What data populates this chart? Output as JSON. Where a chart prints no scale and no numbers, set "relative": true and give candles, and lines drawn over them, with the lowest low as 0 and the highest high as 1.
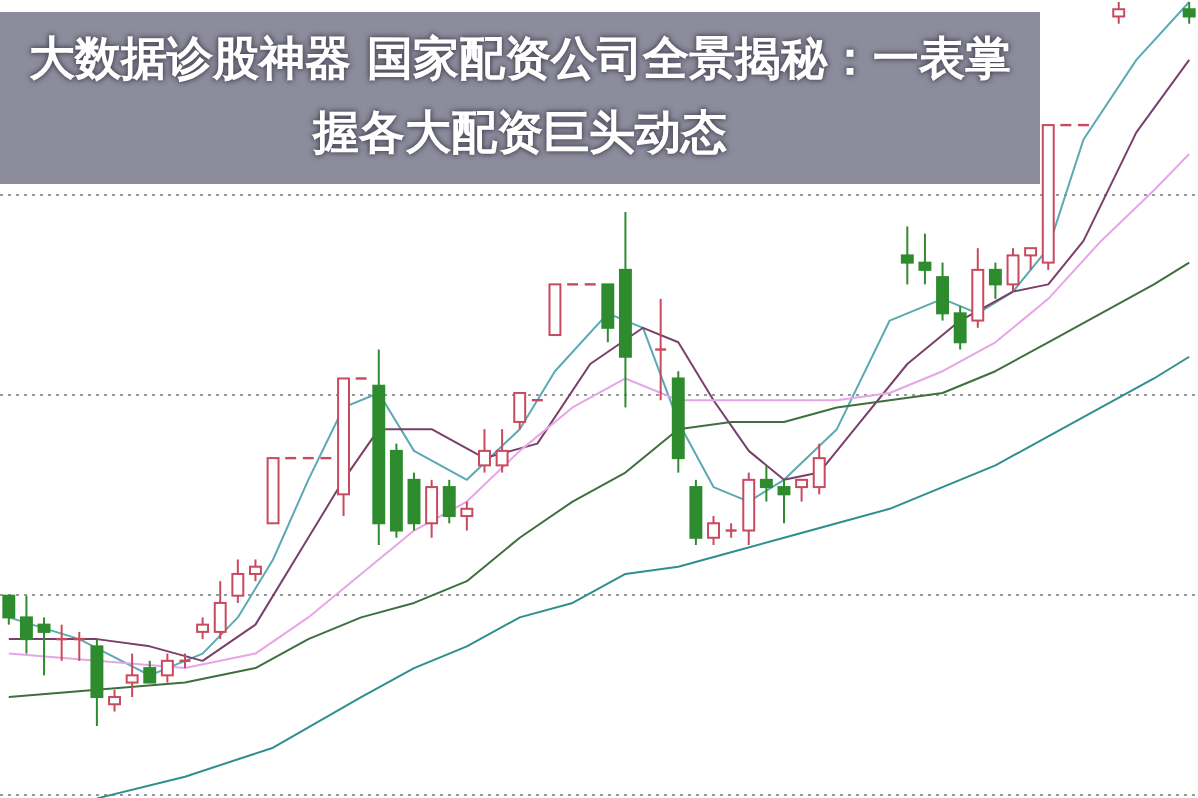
{
  "chart_data": {
    "type": "candlestick",
    "title": "大数据诊股神器 国家配资公司全景揭秘：一表掌握各大配资巨头动态",
    "relative": true,
    "grid": "y",
    "categories": [
      null,
      null,
      null,
      null,
      null,
      null,
      null,
      null,
      null,
      null,
      null,
      null,
      null,
      null,
      null,
      null,
      null,
      null,
      null,
      null,
      null,
      null,
      null,
      null,
      null,
      null,
      null,
      null,
      null,
      null,
      null,
      null,
      null,
      null,
      null,
      null,
      null,
      null,
      null,
      null,
      null,
      null,
      null,
      null,
      null,
      null,
      null,
      null,
      null,
      null,
      null,
      null,
      null,
      null,
      null,
      null,
      null,
      null,
      null,
      null,
      null,
      null,
      null,
      null,
      null,
      null,
      null,
      null
    ],
    "ohlc": [
      [
        0.18,
        0.18,
        0.14,
        0.15
      ],
      [
        0.15,
        0.18,
        0.1,
        0.12
      ],
      [
        0.14,
        0.15,
        0.07,
        0.13
      ],
      [
        0.12,
        0.14,
        0.09,
        0.12
      ],
      [
        0.12,
        0.13,
        0.09,
        0.12
      ],
      [
        0.11,
        0.12,
        0,
        0.04
      ],
      [
        0.03,
        0.05,
        0.02,
        0.04
      ],
      [
        0.06,
        0.1,
        0.04,
        0.07
      ],
      [
        0.08,
        0.09,
        0.06,
        0.06
      ],
      [
        0.07,
        0.1,
        0.06,
        0.09
      ],
      [
        0.09,
        0.1,
        0.08,
        0.09
      ],
      [
        0.13,
        0.15,
        0.12,
        0.14
      ],
      [
        0.13,
        0.2,
        0.12,
        0.17
      ],
      [
        0.18,
        0.23,
        0.17,
        0.21
      ],
      [
        0.21,
        0.23,
        0.2,
        0.22
      ],
      [
        0.28,
        0.37,
        0.28,
        0.37
      ],
      [
        0.37,
        0.37,
        0.37,
        0.37
      ],
      [
        0.37,
        0.37,
        0.37,
        0.37
      ],
      [
        0.37,
        0.37,
        0.37,
        0.37
      ],
      [
        0.32,
        0.48,
        0.29,
        0.48
      ],
      [
        0.48,
        0.48,
        0.48,
        0.48
      ],
      [
        0.47,
        0.52,
        0.25,
        0.28
      ],
      [
        0.38,
        0.39,
        0.26,
        0.27
      ],
      [
        0.34,
        0.35,
        0.27,
        0.28
      ],
      [
        0.28,
        0.34,
        0.26,
        0.33
      ],
      [
        0.33,
        0.34,
        0.28,
        0.29
      ],
      [
        0.29,
        0.31,
        0.27,
        0.3
      ],
      [
        0.36,
        0.41,
        0.35,
        0.38
      ],
      [
        0.36,
        0.41,
        0.35,
        0.38
      ],
      [
        0.42,
        0.46,
        0.41,
        0.46
      ],
      [
        0.45,
        0.45,
        0.45,
        0.45
      ],
      [
        0.54,
        0.61,
        0.54,
        0.61
      ],
      [
        0.61,
        0.61,
        0.61,
        0.61
      ],
      [
        0.61,
        0.61,
        0.61,
        0.61
      ],
      [
        0.61,
        0.61,
        0.53,
        0.55
      ],
      [
        0.63,
        0.71,
        0.44,
        0.51
      ],
      null,
      [
        0.52,
        0.59,
        0.45,
        0.52
      ],
      [
        0.48,
        0.49,
        0.35,
        0.37
      ],
      [
        0.33,
        0.34,
        0.25,
        0.26
      ],
      [
        0.26,
        0.29,
        0.25,
        0.28
      ],
      [
        0.27,
        0.28,
        0.26,
        0.27
      ],
      [
        0.27,
        0.35,
        0.25,
        0.34
      ],
      [
        0.34,
        0.36,
        0.31,
        0.33
      ],
      [
        0.33,
        0.34,
        0.28,
        0.32
      ],
      [
        0.33,
        0.34,
        0.31,
        0.34
      ],
      [
        0.33,
        0.39,
        0.32,
        0.37
      ],
      null,
      null,
      null,
      null,
      [
        0.65,
        0.69,
        0.61,
        0.64
      ],
      [
        0.64,
        0.68,
        0.61,
        0.63
      ],
      [
        0.62,
        0.64,
        0.56,
        0.57
      ],
      [
        0.57,
        0.58,
        0.52,
        0.53
      ],
      [
        0.56,
        0.66,
        0.55,
        0.63
      ],
      [
        0.63,
        0.64,
        0.59,
        0.61
      ],
      [
        0.61,
        0.66,
        0.6,
        0.65
      ],
      [
        0.65,
        0.66,
        0.63,
        0.66
      ],
      [
        0.64,
        0.83,
        0.63,
        0.83
      ],
      [
        0.83,
        0.83,
        0.83,
        0.83
      ],
      [
        0.83,
        0.83,
        0.83,
        0.83
      ],
      null,
      [
        0.98,
        1,
        0.97,
        0.99
      ],
      null,
      null,
      null,
      [
        0.99,
        1,
        0.97,
        0.98
      ]
    ],
    "series": [
      {
        "type": "line",
        "color": "#5aa9b3",
        "values": [
          0.15,
          null,
          null,
          null,
          0.12,
          null,
          null,
          null,
          0.07,
          null,
          null,
          0.1,
          null,
          0.15,
          null,
          0.23,
          null,
          0.34,
          null,
          0.44,
          null,
          0.46,
          null,
          0.38,
          null,
          null,
          0.34,
          null,
          null,
          0.41,
          null,
          0.49,
          null,
          null,
          0.57,
          null,
          0.55,
          null,
          0.42,
          null,
          0.33,
          null,
          0.31,
          null,
          0.34,
          null,
          null,
          0.41,
          null,
          null,
          0.56,
          null,
          null,
          0.59,
          null,
          0.57,
          null,
          0.6,
          null,
          0.66,
          null,
          0.81,
          null,
          null,
          0.92,
          null,
          null,
          1
        ]
      },
      {
        "type": "line",
        "color": "#7a3f6a",
        "values": [
          0.12,
          null,
          null,
          null,
          null,
          0.12,
          null,
          null,
          0.11,
          null,
          null,
          0.09,
          null,
          null,
          0.14,
          null,
          null,
          0.26,
          null,
          0.34,
          null,
          0.41,
          null,
          null,
          0.41,
          null,
          null,
          0.37,
          null,
          null,
          0.39,
          null,
          null,
          0.5,
          null,
          null,
          0.55,
          null,
          0.53,
          null,
          0.45,
          null,
          0.38,
          null,
          0.34,
          null,
          0.35,
          null,
          0.41,
          null,
          null,
          0.5,
          null,
          null,
          0.56,
          null,
          null,
          0.6,
          null,
          0.61,
          null,
          0.67,
          null,
          null,
          0.82,
          null,
          null,
          0.92
        ]
      },
      {
        "type": "line",
        "color": "#e6a6e6",
        "values": [
          0.1,
          null,
          null,
          null,
          null,
          0.09,
          null,
          null,
          null,
          null,
          0.08,
          null,
          null,
          null,
          0.1,
          null,
          null,
          0.15,
          null,
          null,
          0.21,
          null,
          null,
          0.27,
          null,
          null,
          0.31,
          null,
          null,
          0.38,
          null,
          null,
          0.44,
          null,
          null,
          0.48,
          null,
          null,
          0.45,
          null,
          null,
          0.45,
          null,
          null,
          0.45,
          null,
          null,
          0.45,
          null,
          null,
          0.46,
          null,
          null,
          0.49,
          null,
          null,
          0.53,
          null,
          null,
          0.59,
          null,
          null,
          0.67,
          null,
          null,
          0.74,
          null,
          0.79
        ]
      },
      {
        "type": "line",
        "color": "#3f6f3f",
        "values": [
          0.04,
          null,
          null,
          null,
          null,
          0.05,
          null,
          null,
          null,
          null,
          0.06,
          null,
          null,
          null,
          0.08,
          null,
          null,
          0.12,
          null,
          null,
          0.15,
          null,
          null,
          0.17,
          null,
          null,
          0.2,
          null,
          null,
          0.26,
          null,
          null,
          0.31,
          null,
          null,
          0.35,
          null,
          null,
          0.41,
          null,
          null,
          0.42,
          null,
          null,
          0.42,
          null,
          null,
          0.44,
          null,
          null,
          0.45,
          null,
          null,
          0.46,
          null,
          null,
          0.49,
          null,
          null,
          0.53,
          null,
          null,
          0.57,
          null,
          null,
          0.61,
          null,
          0.64
        ]
      },
      {
        "type": "line",
        "color": "#2f8f8f",
        "values": [
          null,
          null,
          null,
          null,
          null,
          -0.1,
          null,
          null,
          null,
          null,
          -0.07,
          null,
          null,
          null,
          null,
          -0.03,
          null,
          null,
          null,
          null,
          0.04,
          null,
          null,
          0.08,
          null,
          null,
          0.11,
          null,
          null,
          0.15,
          null,
          null,
          0.17,
          null,
          null,
          0.21,
          null,
          null,
          0.22,
          null,
          null,
          0.24,
          null,
          null,
          0.26,
          null,
          null,
          0.28,
          null,
          null,
          0.3,
          null,
          null,
          0.33,
          null,
          null,
          0.36,
          null,
          null,
          0.4,
          null,
          null,
          0.44,
          null,
          null,
          0.48,
          null,
          0.51
        ]
      }
    ]
  }
}
